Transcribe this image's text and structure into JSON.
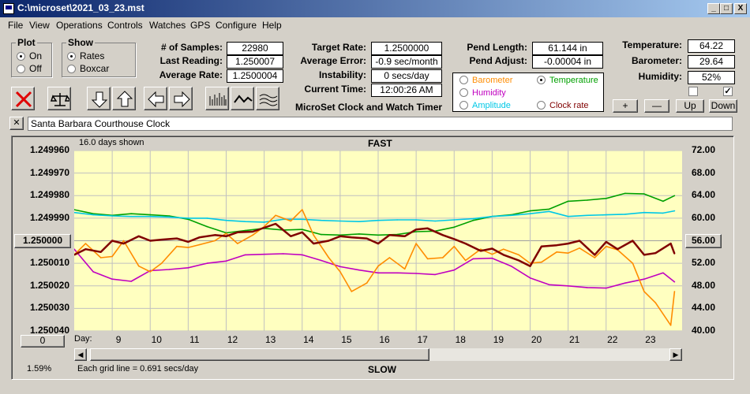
{
  "window": {
    "title": "C:\\microset\\2021_03_23.mst",
    "controls": [
      "_",
      "□",
      "X"
    ]
  },
  "menu": [
    "File",
    "View",
    "Operations",
    "Controls",
    "Watches",
    "GPS",
    "Configure",
    "Help"
  ],
  "plot_group": {
    "title": "Plot",
    "options": [
      "On",
      "Off"
    ],
    "selected": "On"
  },
  "show_group": {
    "title": "Show",
    "options": [
      "Rates",
      "Boxcar"
    ],
    "selected": "Rates"
  },
  "stats": {
    "samples_label": "# of Samples:",
    "samples": "22980",
    "last_reading_label": "Last Reading:",
    "last_reading": "1.250007",
    "avg_rate_label": "Average Rate:",
    "avg_rate": "1.2500004"
  },
  "targets": {
    "target_rate_label": "Target Rate:",
    "target_rate": "1.2500000",
    "avg_error_label": "Average Error:",
    "avg_error": "-0.9 sec/month",
    "instability_label": "Instability:",
    "instability": "0 secs/day",
    "current_time_label": "Current Time:",
    "current_time": "12:00:26 AM"
  },
  "pend": {
    "length_label": "Pend Length:",
    "length": "61.144 in",
    "adjust_label": "Pend Adjust:",
    "adjust": "-0.00004 in"
  },
  "environment": {
    "temperature_label": "Temperature:",
    "temperature": "64.22",
    "barometer_label": "Barometer:",
    "barometer": "29.64",
    "humidity_label": "Humidity:",
    "humidity": "52%"
  },
  "app_caption": "MicroSet Clock and Watch Timer",
  "legend": {
    "items": [
      {
        "label": "Barometer",
        "color": "#ff8c00",
        "selected": false
      },
      {
        "label": "Temperature",
        "color": "#00a000",
        "selected": true
      },
      {
        "label": "Humidity",
        "color": "#c000c0",
        "selected": false
      },
      {
        "label": "Amplitude",
        "color": "#00c8e6",
        "selected": false
      },
      {
        "label": "Clock rate",
        "color": "#800000",
        "selected": false
      }
    ]
  },
  "small_buttons": {
    "plus": "+",
    "minus": "—",
    "up": "Up",
    "down": "Down"
  },
  "checkboxes": {
    "left": false,
    "right": true
  },
  "clock_name": "Santa Barbara Courthouse Clock",
  "clear_label": "✕",
  "chart_data": {
    "type": "line",
    "top_label": "FAST",
    "bottom_label": "SLOW",
    "days_shown": "16.0 days shown",
    "grid_note": "Each grid line = 0.691 secs/day",
    "percent": "1.59%",
    "left_button": "1.250000",
    "right_button": "56.00",
    "zero_button": "0",
    "day_label": "Day:",
    "y_left_ticks": [
      "1.249960",
      "1.249970",
      "1.249980",
      "1.249990",
      "1.250000",
      "1.250010",
      "1.250020",
      "1.250030",
      "1.250040"
    ],
    "y_right_ticks": [
      "72.00",
      "68.00",
      "64.00",
      "60.00",
      "56.00",
      "52.00",
      "48.00",
      "44.00",
      "40.00"
    ],
    "x_ticks": [
      "9",
      "10",
      "11",
      "12",
      "13",
      "14",
      "15",
      "16",
      "17",
      "18",
      "19",
      "20",
      "21",
      "22",
      "23"
    ],
    "x_range": [
      8.0,
      24.0
    ],
    "y_right_range": [
      40,
      72
    ],
    "series": [
      {
        "name": "Temperature",
        "color": "#00a000",
        "x": [
          8.0,
          8.5,
          9.0,
          9.5,
          10.0,
          10.5,
          11.0,
          11.5,
          12.0,
          12.5,
          13.0,
          13.5,
          14.0,
          14.5,
          15.0,
          15.5,
          16.0,
          16.5,
          17.0,
          17.5,
          18.0,
          18.5,
          19.0,
          19.5,
          20.0,
          20.5,
          21.0,
          21.5,
          22.0,
          22.5,
          23.0,
          23.5,
          23.8
        ],
        "y": [
          61.5,
          60.8,
          60.5,
          60.8,
          60.6,
          60.4,
          59.8,
          58.5,
          57.4,
          57.8,
          58.2,
          57.9,
          58.0,
          57.1,
          57.0,
          57.2,
          57.0,
          57.1,
          57.6,
          57.7,
          58.4,
          59.6,
          60.3,
          60.6,
          61.3,
          61.6,
          63.0,
          63.2,
          63.5,
          64.4,
          64.3,
          63.0,
          64.0
        ]
      },
      {
        "name": "Amplitude",
        "color": "#00c8e6",
        "x": [
          8.0,
          8.5,
          9.0,
          9.5,
          10.0,
          10.5,
          11.0,
          11.5,
          12.0,
          12.5,
          13.0,
          13.5,
          14.0,
          14.5,
          15.0,
          15.5,
          16.0,
          16.5,
          17.0,
          17.5,
          18.0,
          18.5,
          19.0,
          19.5,
          20.0,
          20.5,
          21.0,
          21.5,
          22.0,
          22.5,
          23.0,
          23.5,
          23.8
        ],
        "y": [
          61.0,
          60.6,
          60.4,
          60.3,
          60.3,
          60.2,
          60.0,
          60.0,
          59.6,
          59.4,
          59.3,
          59.8,
          59.8,
          59.6,
          59.5,
          59.4,
          59.6,
          59.7,
          59.7,
          59.5,
          59.7,
          59.9,
          60.3,
          60.5,
          60.8,
          61.2,
          60.3,
          60.5,
          60.6,
          60.7,
          61.0,
          60.9,
          61.3
        ]
      },
      {
        "name": "Humidity",
        "color": "#c000c0",
        "x": [
          8.0,
          8.5,
          9.0,
          9.5,
          10.0,
          10.5,
          11.0,
          11.5,
          12.0,
          12.5,
          13.0,
          13.5,
          14.0,
          14.5,
          15.0,
          15.5,
          16.0,
          16.5,
          17.0,
          17.5,
          18.0,
          18.5,
          19.0,
          19.5,
          20.0,
          20.5,
          21.0,
          21.5,
          22.0,
          22.5,
          23.0,
          23.5,
          23.8
        ],
        "y": [
          54.5,
          50.5,
          49.2,
          48.8,
          50.7,
          50.9,
          51.2,
          52.0,
          52.4,
          53.5,
          53.6,
          53.7,
          53.5,
          52.5,
          51.4,
          50.8,
          50.3,
          50.3,
          50.2,
          50.0,
          50.8,
          52.8,
          52.9,
          51.5,
          49.4,
          48.2,
          48.0,
          47.7,
          47.6,
          48.5,
          49.2,
          50.3,
          48.7
        ]
      },
      {
        "name": "Barometer",
        "color": "#ff8c00",
        "x": [
          8.0,
          8.3,
          8.7,
          9.0,
          9.3,
          9.7,
          10.0,
          10.3,
          10.7,
          11.0,
          11.3,
          11.7,
          12.0,
          12.3,
          12.7,
          13.0,
          13.3,
          13.7,
          14.0,
          14.3,
          14.7,
          15.0,
          15.3,
          15.7,
          16.0,
          16.3,
          16.7,
          17.0,
          17.3,
          17.7,
          18.0,
          18.3,
          18.7,
          19.0,
          19.3,
          19.7,
          20.0,
          20.3,
          20.7,
          21.0,
          21.3,
          21.7,
          22.0,
          22.3,
          22.7,
          23.0,
          23.3,
          23.7,
          23.8
        ],
        "y": [
          53.5,
          55.5,
          53.0,
          53.2,
          56.0,
          51.5,
          50.5,
          52.0,
          55.0,
          54.8,
          55.3,
          56.0,
          57.3,
          55.5,
          57.0,
          58.5,
          60.5,
          59.5,
          61.5,
          57.0,
          53.0,
          50.5,
          47.0,
          48.5,
          51.5,
          53.0,
          51.0,
          55.5,
          52.8,
          53.0,
          55.0,
          52.5,
          54.5,
          53.6,
          54.5,
          53.5,
          52.0,
          52.2,
          54.0,
          53.8,
          54.7,
          53.0,
          55.0,
          54.4,
          52.0,
          47.0,
          45.0,
          41.0,
          47.0
        ]
      },
      {
        "name": "Clock rate",
        "color": "#800000",
        "x": [
          8.0,
          8.3,
          8.7,
          9.0,
          9.3,
          9.7,
          10.0,
          10.3,
          10.7,
          11.0,
          11.3,
          11.7,
          12.0,
          12.3,
          12.7,
          13.0,
          13.3,
          13.7,
          14.0,
          14.3,
          14.7,
          15.0,
          15.3,
          15.7,
          16.0,
          16.3,
          16.7,
          17.0,
          17.3,
          17.7,
          18.0,
          18.3,
          18.7,
          19.0,
          19.3,
          19.7,
          20.0,
          20.3,
          20.7,
          21.0,
          21.3,
          21.7,
          22.0,
          22.3,
          22.7,
          23.0,
          23.3,
          23.7,
          23.8
        ],
        "y": [
          53.5,
          54.5,
          54.0,
          56.0,
          55.5,
          56.8,
          56.0,
          56.2,
          56.4,
          55.8,
          56.6,
          57.0,
          56.8,
          57.5,
          57.6,
          58.3,
          59.0,
          56.8,
          57.5,
          55.5,
          56.0,
          56.8,
          56.6,
          56.4,
          55.5,
          57.0,
          56.8,
          58.0,
          58.2,
          57.0,
          56.3,
          55.5,
          54.2,
          54.6,
          53.5,
          52.5,
          51.5,
          55.0,
          55.2,
          55.5,
          56.0,
          53.5,
          55.8,
          54.5,
          56.0,
          53.5,
          53.8,
          55.5,
          53.7
        ]
      }
    ]
  }
}
